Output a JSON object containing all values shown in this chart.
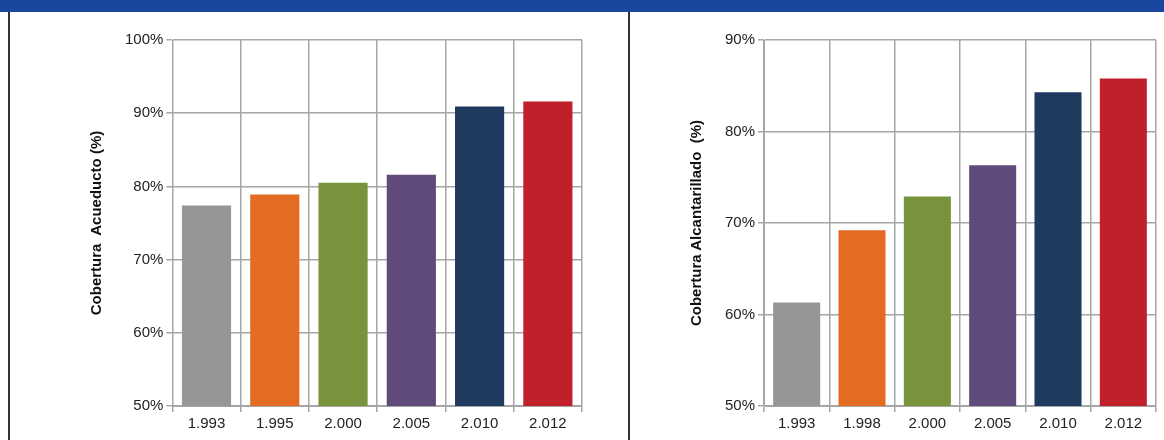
{
  "chart_data": [
    {
      "type": "bar",
      "ylabel": "Cobertura  Acueducto (%)",
      "categories": [
        "1.993",
        "1.995",
        "2.000",
        "2.005",
        "2.010",
        "2.012"
      ],
      "values": [
        77.4,
        78.9,
        80.5,
        81.6,
        90.9,
        91.6
      ],
      "colors": [
        "#969696",
        "#e46c22",
        "#77933c",
        "#604a7b",
        "#1f3a5f",
        "#c0202a"
      ],
      "ylim": [
        50,
        100
      ],
      "yticks": [
        {
          "value": 50,
          "label": "50%"
        },
        {
          "value": 60,
          "label": "60%"
        },
        {
          "value": 70,
          "label": "70%"
        },
        {
          "value": 80,
          "label": "80%"
        },
        {
          "value": 90,
          "label": "90%"
        },
        {
          "value": 100,
          "label": "100%"
        }
      ],
      "grid": true
    },
    {
      "type": "bar",
      "ylabel": "Cobertura Alcantarillado  (%)",
      "categories": [
        "1.993",
        "1.998",
        "2.000",
        "2.005",
        "2.010",
        "2.012"
      ],
      "values": [
        61.3,
        69.2,
        72.9,
        76.3,
        84.3,
        85.8
      ],
      "colors": [
        "#969696",
        "#e46c22",
        "#77933c",
        "#604a7b",
        "#1f3a5f",
        "#c0202a"
      ],
      "ylim": [
        50,
        90
      ],
      "yticks": [
        {
          "value": 50,
          "label": "50%"
        },
        {
          "value": 60,
          "label": "60%"
        },
        {
          "value": 70,
          "label": "70%"
        },
        {
          "value": 80,
          "label": "80%"
        },
        {
          "value": 90,
          "label": "90%"
        }
      ],
      "grid": true
    }
  ]
}
